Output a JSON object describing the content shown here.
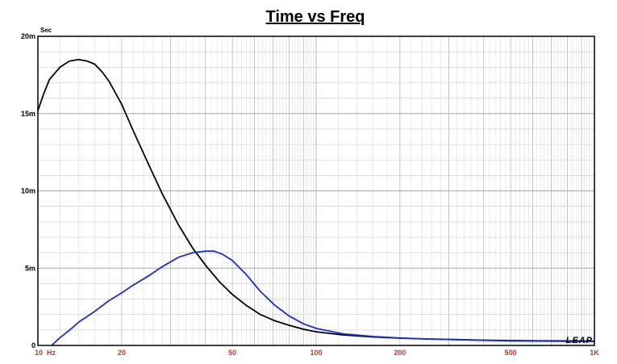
{
  "chart_data": {
    "type": "line",
    "title": "Time vs Freq",
    "ylabel": "Sec",
    "xlabel": "",
    "x_scale": "log",
    "xlim": [
      10,
      1000
    ],
    "ylim": [
      0,
      0.02
    ],
    "grid": true,
    "x_ticks": [
      {
        "value": 10,
        "label": "10  Hz"
      },
      {
        "value": 20,
        "label": "20"
      },
      {
        "value": 50,
        "label": "50"
      },
      {
        "value": 100,
        "label": "100"
      },
      {
        "value": 200,
        "label": "200"
      },
      {
        "value": 500,
        "label": "500"
      },
      {
        "value": 1000,
        "label": "1K"
      }
    ],
    "y_ticks": [
      {
        "value": 0,
        "label": "0"
      },
      {
        "value": 0.005,
        "label": "5m"
      },
      {
        "value": 0.01,
        "label": "10m"
      },
      {
        "value": 0.015,
        "label": "15m"
      },
      {
        "value": 0.02,
        "label": "20m"
      }
    ],
    "series": [
      {
        "color": "#000000",
        "x": [
          10,
          10.5,
          11,
          12,
          13,
          14,
          15,
          16,
          17,
          18,
          20,
          22,
          25,
          28,
          32,
          36,
          40,
          45,
          50,
          56,
          63,
          71,
          80,
          90,
          100,
          125,
          160,
          200,
          250,
          315,
          400,
          500,
          630,
          800,
          1000
        ],
        "y": [
          0.0152,
          0.0163,
          0.0172,
          0.018,
          0.0184,
          0.0185,
          0.0184,
          0.0182,
          0.0177,
          0.0171,
          0.0156,
          0.0139,
          0.0117,
          0.0098,
          0.0078,
          0.0063,
          0.0052,
          0.0041,
          0.0033,
          0.0026,
          0.002,
          0.0016,
          0.0013,
          0.00105,
          0.00088,
          0.00068,
          0.00055,
          0.00047,
          0.00042,
          0.00038,
          0.00034,
          0.00032,
          0.0003,
          0.00029,
          0.00028
        ]
      },
      {
        "color": "#1a2fd0",
        "x": [
          11.2,
          12,
          13,
          14,
          16,
          18,
          20,
          22,
          25,
          28,
          32,
          36,
          40,
          43,
          46,
          50,
          56,
          63,
          71,
          80,
          90,
          100,
          125,
          160,
          200,
          250,
          315,
          400,
          500,
          630,
          800,
          1000
        ],
        "y": [
          0.0,
          0.0005,
          0.001,
          0.0015,
          0.0022,
          0.0029,
          0.0034,
          0.0039,
          0.0045,
          0.0051,
          0.0057,
          0.006,
          0.0061,
          0.0061,
          0.0059,
          0.0055,
          0.0046,
          0.0035,
          0.0026,
          0.0019,
          0.0014,
          0.0011,
          0.00075,
          0.00058,
          0.00048,
          0.00042,
          0.00037,
          0.00033,
          0.0003,
          0.00028,
          0.00026,
          0.00025
        ]
      }
    ]
  },
  "logo": {
    "text": "LEAP"
  }
}
